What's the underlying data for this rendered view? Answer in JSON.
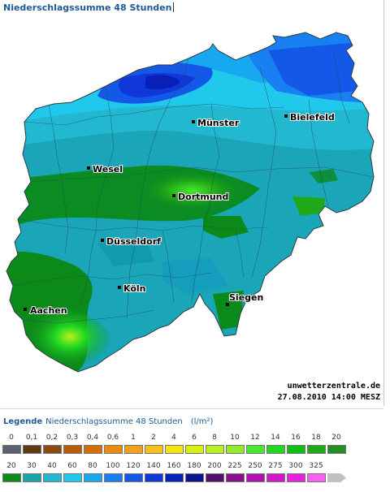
{
  "page": {
    "title": "Niederschlagssumme 48 Stunden"
  },
  "map": {
    "cities": [
      {
        "name": "Münster"
      },
      {
        "name": "Bielefeld"
      },
      {
        "name": "Wesel"
      },
      {
        "name": "Dortmund"
      },
      {
        "name": "Düsseldorf"
      },
      {
        "name": "Köln"
      },
      {
        "name": "Siegen"
      },
      {
        "name": "Aachen"
      }
    ],
    "credit_site": "unwetterzentrale.de",
    "credit_time": "27.08.2010 14:00 MESZ"
  },
  "legend": {
    "label": "Legende",
    "title": "Niederschlagssumme 48 Stunden",
    "unit": "(l/m²)",
    "row1": [
      {
        "label": "0",
        "color": "#5c6170"
      },
      {
        "label": "0,1",
        "color": "#5b3a10"
      },
      {
        "label": "0,2",
        "color": "#8a4a10"
      },
      {
        "label": "0,3",
        "color": "#b85a08"
      },
      {
        "label": "0,4",
        "color": "#d46e08"
      },
      {
        "label": "0,6",
        "color": "#ec8a10"
      },
      {
        "label": "1",
        "color": "#f4a018"
      },
      {
        "label": "2",
        "color": "#f8c018"
      },
      {
        "label": "4",
        "color": "#f4e410"
      },
      {
        "label": "6",
        "color": "#d8f010"
      },
      {
        "label": "8",
        "color": "#b8f020"
      },
      {
        "label": "10",
        "color": "#90ec28"
      },
      {
        "label": "12",
        "color": "#48e830"
      },
      {
        "label": "14",
        "color": "#20d820"
      },
      {
        "label": "16",
        "color": "#10c010"
      },
      {
        "label": "18",
        "color": "#20a818"
      },
      {
        "label": "20",
        "color": "#209020"
      }
    ],
    "row2": [
      {
        "label": "20",
        "color": "#0b8a1a"
      },
      {
        "label": "30",
        "color": "#1aa6a8"
      },
      {
        "label": "40",
        "color": "#22b8d0"
      },
      {
        "label": "60",
        "color": "#20c8ec"
      },
      {
        "label": "80",
        "color": "#18a8f0"
      },
      {
        "label": "100",
        "color": "#1880f0"
      },
      {
        "label": "120",
        "color": "#1458e8"
      },
      {
        "label": "140",
        "color": "#1038d8"
      },
      {
        "label": "160",
        "color": "#0820b8"
      },
      {
        "label": "180",
        "color": "#0a1490"
      },
      {
        "label": "200",
        "color": "#501070"
      },
      {
        "label": "225",
        "color": "#8a1090"
      },
      {
        "label": "250",
        "color": "#b010b0"
      },
      {
        "label": "275",
        "color": "#d018c8"
      },
      {
        "label": "300",
        "color": "#e820e0"
      },
      {
        "label": "325",
        "color": "#f860f0"
      },
      {
        "label": "",
        "color": "#c0c0c0"
      }
    ]
  }
}
